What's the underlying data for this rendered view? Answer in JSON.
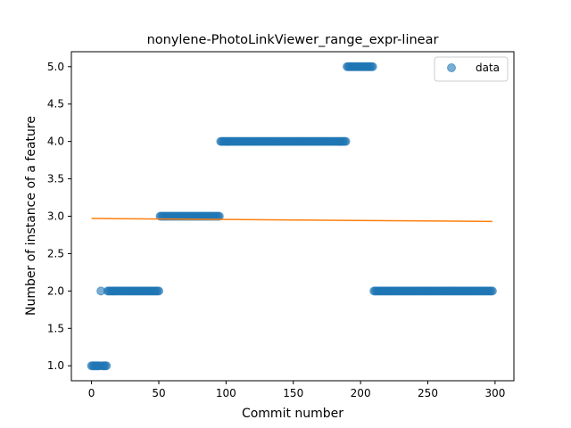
{
  "chart_data": {
    "type": "scatter",
    "title": "nonylene-PhotoLinkViewer_range_expr-linear",
    "xlabel": "Commit number",
    "ylabel": "Number of instance of a feature",
    "xlim": [
      -15,
      314
    ],
    "ylim": [
      0.8,
      5.2
    ],
    "x_ticks": [
      "0",
      "50",
      "100",
      "150",
      "200",
      "250",
      "300"
    ],
    "y_ticks": [
      "1.0",
      "1.5",
      "2.0",
      "2.5",
      "3.0",
      "3.5",
      "4.0",
      "4.5",
      "5.0"
    ],
    "grid": false,
    "legend": {
      "position": "top-right",
      "entries": [
        "data"
      ]
    },
    "series": [
      {
        "name": "data",
        "kind": "scatter",
        "color": "#1f77b4",
        "segments": [
          {
            "x_start": 0,
            "x_end": 6,
            "y": 1.0
          },
          {
            "x_start": 7,
            "x_end": 7,
            "y": 2.0
          },
          {
            "x_start": 8,
            "x_end": 11,
            "y": 1.0
          },
          {
            "x_start": 12,
            "x_end": 50,
            "y": 2.0
          },
          {
            "x_start": 51,
            "x_end": 95,
            "y": 3.0
          },
          {
            "x_start": 96,
            "x_end": 189,
            "y": 4.0
          },
          {
            "x_start": 190,
            "x_end": 209,
            "y": 5.0
          },
          {
            "x_start": 210,
            "x_end": 298,
            "y": 2.0
          }
        ]
      },
      {
        "kind": "line",
        "color": "#ff7f0e",
        "x": [
          0,
          298
        ],
        "y": [
          2.97,
          2.93
        ]
      }
    ]
  }
}
